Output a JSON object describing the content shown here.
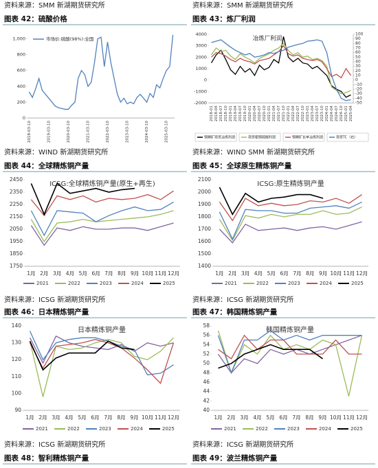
{
  "chart_data": [
    {
      "type": "line",
      "source": "资料来源：SMM 新湖期货研究所",
      "caption": "图表 42：硫酸价格",
      "categories": [
        "2018-03-10",
        null,
        null,
        null,
        null,
        null,
        "2019-03-10",
        null,
        null,
        null,
        null,
        null,
        "2020-03-10",
        null,
        null,
        null,
        null,
        null,
        "2021-03-10",
        null,
        null,
        null,
        null,
        null,
        "2022-03-10",
        null,
        null,
        null,
        null,
        null,
        "2023-03-10",
        null,
        null,
        null,
        null,
        null,
        "2024-03-10",
        null,
        null,
        null,
        null,
        null,
        "2025-03-10",
        null,
        null
      ],
      "series": [
        {
          "name": "市场价:硫酸(98%):全国",
          "color": "#4f81bd",
          "values": [
            330,
            260,
            370,
            500,
            350,
            300,
            250,
            200,
            150,
            130,
            120,
            110,
            110,
            160,
            200,
            500,
            600,
            550,
            400,
            450,
            700,
            1000,
            1020,
            650,
            960,
            700,
            500,
            300,
            200,
            250,
            180,
            200,
            180,
            260,
            300,
            250,
            200,
            310,
            260,
            420,
            380,
            500,
            600,
            650,
            1050
          ]
        }
      ],
      "ylim": [
        0,
        1100
      ],
      "yticks": [
        0,
        200,
        400,
        600,
        800,
        {
          "value": 1000,
          "label": "1,000"
        }
      ],
      "grid": false
    },
    {
      "type": "line",
      "source": "资料来源：SMM 新湖期货研究所",
      "caption": "图表 43：炼厂利润",
      "title": "冶炼厂利润",
      "categories": [
        "2018-01",
        "2018-04",
        "2018-07",
        "2018-10",
        "2019-01",
        "2019-04",
        "2019-07",
        "2019-10",
        "2020-01",
        "2020-04",
        "2020-07",
        "2020-10",
        "2021-01",
        "2021-04",
        "2021-07",
        "2021-10",
        "2022-01",
        "2022-04",
        "2022-07",
        "2022-10",
        "2023-01",
        "2023-04",
        "2023-07",
        "2023-10",
        "2024-01",
        "2024-04",
        "2024-07",
        "2024-10",
        "2025-01",
        "2025-04"
      ],
      "series": [
        {
          "name": "铜精矿现货冶炼利润",
          "color": "#000000",
          "values": [
            1500,
            2200,
            2600,
            1800,
            900,
            500,
            1200,
            700,
            1000,
            400,
            1300,
            900,
            1100,
            1800,
            1500,
            3800,
            2000,
            1600,
            1900,
            1500,
            1400,
            1000,
            1200,
            800,
            400,
            -500,
            -800,
            -1000,
            -1500,
            -1300
          ]
        },
        {
          "name": "现货粗铜硫酸利润",
          "color": "#9bbb59",
          "values": [
            2200,
            2800,
            2500,
            2600,
            2100,
            1800,
            2300,
            2000,
            1800,
            1500,
            1900,
            2100,
            2300,
            2600,
            2800,
            3200,
            2600,
            2200,
            2400,
            2000,
            2100,
            1800,
            1900,
            1700,
            1200,
            -600,
            -900,
            -1200,
            -1100,
            -900
          ]
        },
        {
          "name": "铜精矿长单冶炼利润",
          "color": "#c0504d",
          "values": [
            2000,
            2400,
            2300,
            2100,
            1800,
            1600,
            1900,
            1700,
            1600,
            1400,
            1700,
            1800,
            1900,
            2200,
            2500,
            3000,
            2300,
            2100,
            2200,
            1900,
            1800,
            1700,
            1800,
            1600,
            1000,
            300,
            500,
            200,
            1000,
            400
          ]
        },
        {
          "name": "现货TC（右）",
          "color": "#4f81bd",
          "axis": "y2",
          "values": [
            82,
            85,
            88,
            80,
            72,
            65,
            60,
            55,
            58,
            50,
            52,
            55,
            60,
            58,
            62,
            65,
            72,
            75,
            78,
            80,
            85,
            86,
            88,
            85,
            60,
            10,
            -20,
            -40,
            -45,
            -43
          ]
        }
      ],
      "ylim": [
        -2000,
        4000
      ],
      "yticks": [
        -2000,
        -1000,
        0,
        1000,
        2000,
        3000,
        4000
      ],
      "y2lim": [
        -50,
        100
      ],
      "y2ticks": [
        100,
        90,
        80,
        70,
        60,
        50,
        40,
        30,
        20,
        10,
        0,
        -10,
        -20,
        -30,
        -40,
        -50
      ],
      "grid": false
    },
    {
      "type": "line",
      "source": "资料来源：WIND 新湖期货研究所",
      "caption": "图表 44：全球精炼铜产量",
      "title": "ICSG:全球精炼铜产量(原生+再生)",
      "categories": [
        "1月",
        "2月",
        "3月",
        "4月",
        "5月",
        "6月",
        "7月",
        "8月",
        "9月",
        "10月",
        "11月",
        "12月"
      ],
      "series": [
        {
          "name": "2021",
          "color": "#8064a2",
          "values": [
            2080,
            1920,
            2060,
            2040,
            2070,
            2050,
            2050,
            2060,
            2060,
            2040,
            2070,
            2100
          ]
        },
        {
          "name": "2022",
          "color": "#9bbb59",
          "values": [
            2130,
            1950,
            2100,
            2110,
            2130,
            2110,
            2120,
            2130,
            2140,
            2150,
            2170,
            2200
          ]
        },
        {
          "name": "2023",
          "color": "#4f81bd",
          "values": [
            2200,
            2000,
            2200,
            2190,
            2180,
            2110,
            2160,
            2200,
            2230,
            2200,
            2210,
            2270
          ]
        },
        {
          "name": "2024",
          "color": "#c0504d",
          "values": [
            2290,
            2160,
            2320,
            2290,
            2320,
            2270,
            2300,
            2290,
            2300,
            2330,
            2290,
            2360
          ]
        },
        {
          "name": "2025",
          "color": "#000000",
          "values": [
            2420,
            2170,
            2420,
            2340,
            2360,
            2380,
            2350,
            2370,
            2380,
            null,
            null,
            null
          ]
        }
      ],
      "ylim": [
        1750,
        2450
      ],
      "yticks": [
        1750,
        1850,
        1950,
        2050,
        2150,
        2250,
        2350,
        2450
      ],
      "grid": false
    },
    {
      "type": "line",
      "source": "资料来源：WIND SMM 新湖期货研究所",
      "caption": "图表 45：全球原生精炼铜产量",
      "title": "ICSG:原生精炼铜产量",
      "categories": [
        "1月",
        "2月",
        "3月",
        "4月",
        "5月",
        "6月",
        "7月",
        "8月",
        "9月",
        "10月",
        "11月",
        "12月"
      ],
      "series": [
        {
          "name": "2021",
          "color": "#8064a2",
          "values": [
            1700,
            1590,
            1740,
            1690,
            1700,
            1710,
            1690,
            1710,
            1720,
            1700,
            1730,
            1760
          ]
        },
        {
          "name": "2022",
          "color": "#9bbb59",
          "values": [
            1780,
            1610,
            1810,
            1790,
            1820,
            1800,
            1820,
            1820,
            1850,
            1820,
            1830,
            1880
          ]
        },
        {
          "name": "2023",
          "color": "#4f81bd",
          "values": [
            1840,
            1620,
            1860,
            1850,
            1850,
            1830,
            1830,
            1870,
            1880,
            1890,
            1870,
            1920
          ]
        },
        {
          "name": "2024",
          "color": "#c0504d",
          "values": [
            1920,
            1770,
            1950,
            1890,
            1910,
            1890,
            1900,
            1930,
            1920,
            1950,
            1910,
            1980
          ]
        },
        {
          "name": "2025",
          "color": "#000000",
          "values": [
            2040,
            1820,
            1990,
            1920,
            1950,
            1960,
            1980,
            1980,
            1950,
            null,
            null,
            null
          ]
        }
      ],
      "ylim": [
        1400,
        2100
      ],
      "yticks": [
        1400,
        1500,
        1600,
        1700,
        1800,
        1900,
        2000,
        2100
      ],
      "grid": false
    },
    {
      "type": "line",
      "source": "资料来源：ICSG 新湖期货研究所",
      "caption": "图表 46：日本精炼铜产量",
      "title": "日本精炼铜产量",
      "categories": [
        "1月",
        "2月",
        "3月",
        "4月",
        "5月",
        "6月",
        "7月",
        "8月",
        "9月",
        "10月",
        "11月",
        "12月"
      ],
      "series": [
        {
          "name": "2021",
          "color": "#8064a2",
          "values": [
            133,
            118,
            134,
            130,
            128,
            127,
            126,
            129,
            125,
            130,
            128,
            130
          ]
        },
        {
          "name": "2022",
          "color": "#9bbb59",
          "values": [
            131,
            98,
            128,
            126,
            127,
            130,
            132,
            130,
            122,
            120,
            125,
            133
          ]
        },
        {
          "name": "2023",
          "color": "#4f81bd",
          "values": [
            137,
            120,
            130,
            132,
            133,
            133,
            131,
            128,
            126,
            111,
            112,
            117
          ]
        },
        {
          "name": "2024",
          "color": "#c0504d",
          "values": [
            130,
            115,
            128,
            129,
            130,
            132,
            130,
            127,
            121,
            114,
            106,
            130
          ]
        },
        {
          "name": "2025",
          "color": "#000000",
          "values": [
            131,
            114,
            121,
            124,
            124,
            124,
            131,
            127,
            126,
            null,
            null,
            null
          ]
        }
      ],
      "ylim": [
        90,
        140
      ],
      "yticks": [
        90,
        100,
        110,
        120,
        130,
        140
      ],
      "grid": false
    },
    {
      "type": "line",
      "source": "资料来源：ICSG 新湖期货研究所",
      "caption": "图表 47：韩国精炼铜产量",
      "title": "韩国精炼铜产量",
      "categories": [
        "1月",
        "2月",
        "3月",
        "4月",
        "5月",
        "6月",
        "7月",
        "8月",
        "9月",
        "10月",
        "11月",
        "12月"
      ],
      "series": [
        {
          "name": "2021",
          "color": "#8064a2",
          "values": [
            52,
            48,
            51,
            50,
            53,
            52,
            53,
            52,
            53,
            54,
            55,
            56
          ]
        },
        {
          "name": "2022",
          "color": "#9bbb59",
          "values": [
            57,
            48,
            54,
            52,
            56,
            53,
            54,
            53,
            55,
            54,
            43,
            56
          ]
        },
        {
          "name": "2023",
          "color": "#4f81bd",
          "values": [
            56,
            48,
            55,
            55,
            57,
            55,
            56,
            55,
            56,
            56,
            56,
            56
          ]
        },
        {
          "name": "2024",
          "color": "#c0504d",
          "values": [
            53,
            51,
            56,
            53,
            55,
            55,
            52,
            52,
            52,
            55,
            52,
            52
          ]
        },
        {
          "name": "2025",
          "color": "#000000",
          "values": [
            49,
            50,
            52,
            53,
            54,
            53,
            53,
            53,
            51,
            null,
            null,
            null
          ]
        }
      ],
      "ylim": [
        40,
        58
      ],
      "yticks": [
        40,
        42,
        44,
        46,
        48,
        50,
        52,
        54,
        56,
        58
      ],
      "grid": false
    }
  ],
  "footer": [
    {
      "source": "资料来源：ICSG 新湖期货研究所",
      "caption": "图表 48：智利精炼铜产量"
    },
    {
      "source": "资料来源：ICSG 新湖期货研究所",
      "caption": "图表 49：波兰精炼铜产量"
    }
  ]
}
